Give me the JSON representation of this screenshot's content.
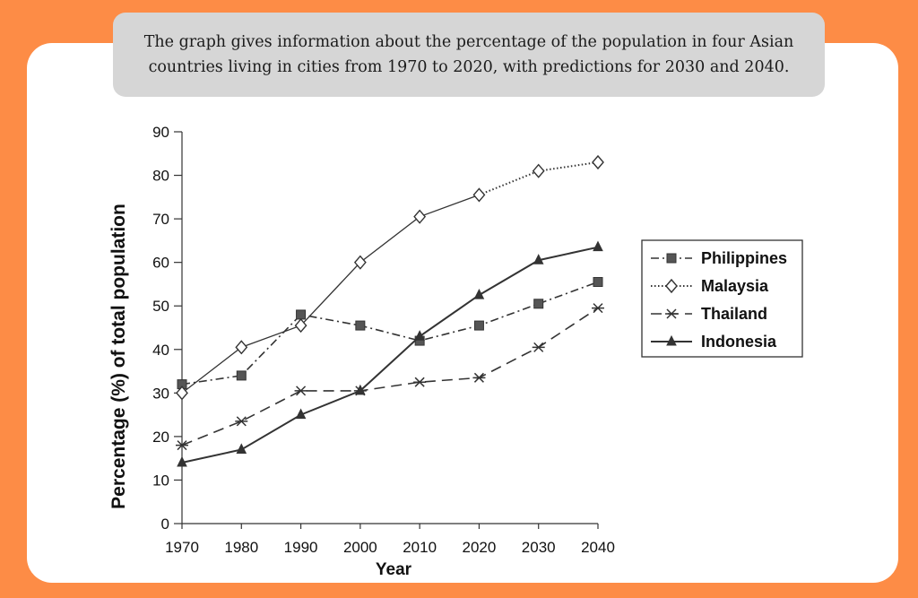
{
  "caption": "The graph gives information about the percentage of the population in four Asian countries living in cities from 1970 to 2020, with predictions for 2030 and 2040.",
  "chart_data": {
    "type": "line",
    "title": "",
    "xlabel": "Year",
    "ylabel": "Percentage (%) of total population",
    "x": [
      1970,
      1980,
      1990,
      2000,
      2010,
      2020,
      2030,
      2040
    ],
    "ylim": [
      0,
      90
    ],
    "yticks": [
      0,
      10,
      20,
      30,
      40,
      50,
      60,
      70,
      80,
      90
    ],
    "grid": false,
    "legend_position": "right",
    "series": [
      {
        "name": "Philippines",
        "marker": "square",
        "dash": "dash-dot",
        "color": "#333333",
        "values": [
          32,
          34,
          48,
          45.5,
          42,
          45.5,
          50.5,
          55.5
        ]
      },
      {
        "name": "Malaysia",
        "marker": "diamond",
        "dash": "dotted-projection",
        "color": "#333333",
        "values": [
          30,
          40.5,
          45.5,
          60,
          70.5,
          75.5,
          81,
          83
        ]
      },
      {
        "name": "Thailand",
        "marker": "x",
        "dash": "dashed",
        "color": "#333333",
        "values": [
          18,
          23.5,
          30.5,
          30.5,
          32.5,
          33.5,
          40.5,
          49.5
        ]
      },
      {
        "name": "Indonesia",
        "marker": "triangle",
        "dash": "solid",
        "color": "#333333",
        "values": [
          14,
          17,
          25,
          30.5,
          43,
          52.5,
          60.5,
          63.5
        ]
      }
    ]
  }
}
